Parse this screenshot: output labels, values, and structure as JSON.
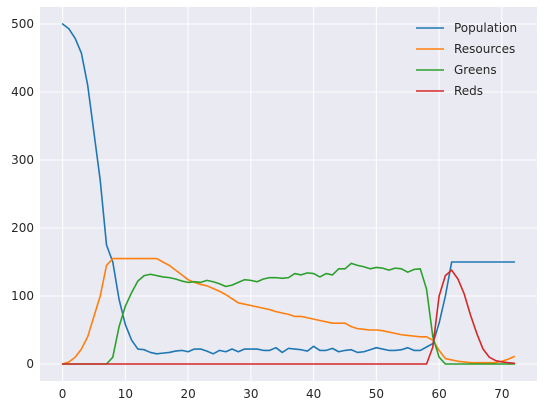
{
  "chart_data": {
    "type": "line",
    "xlim": [
      -3.6,
      75.6
    ],
    "ylim": [
      -25,
      525
    ],
    "x_ticks": [
      0,
      10,
      20,
      30,
      40,
      50,
      60,
      70
    ],
    "y_ticks": [
      0,
      100,
      200,
      300,
      400,
      500
    ],
    "grid": true,
    "background": "#eaeaf2",
    "legend": "top-right",
    "x": [
      0,
      1,
      2,
      3,
      4,
      5,
      6,
      7,
      8,
      9,
      10,
      11,
      12,
      13,
      14,
      15,
      16,
      17,
      18,
      19,
      20,
      21,
      22,
      23,
      24,
      25,
      26,
      27,
      28,
      29,
      30,
      31,
      32,
      33,
      34,
      35,
      36,
      37,
      38,
      39,
      40,
      41,
      42,
      43,
      44,
      45,
      46,
      47,
      48,
      49,
      50,
      51,
      52,
      53,
      54,
      55,
      56,
      57,
      58,
      59,
      60,
      61,
      62,
      63,
      64,
      65,
      66,
      67,
      68,
      69,
      70,
      71,
      72
    ],
    "series": [
      {
        "name": "Population",
        "color": "#1f77b4",
        "values": [
          500,
          493,
          479,
          457,
          410,
          340,
          270,
          175,
          150,
          95,
          58,
          35,
          22,
          21,
          17,
          15,
          16,
          17,
          19,
          20,
          18,
          22,
          22,
          19,
          15,
          20,
          18,
          22,
          18,
          22,
          22,
          22,
          20,
          20,
          24,
          17,
          23,
          22,
          21,
          19,
          26,
          20,
          20,
          23,
          18,
          20,
          21,
          17,
          18,
          21,
          24,
          22,
          20,
          20,
          21,
          24,
          20,
          20,
          25,
          30,
          60,
          100,
          150,
          150,
          150,
          150,
          150,
          150,
          150,
          150,
          150,
          150,
          150
        ]
      },
      {
        "name": "Resources",
        "color": "#ff7f0e",
        "values": [
          0,
          3,
          10,
          22,
          40,
          70,
          100,
          145,
          155,
          155,
          155,
          155,
          155,
          155,
          155,
          155,
          150,
          145,
          138,
          131,
          124,
          120,
          117,
          115,
          111,
          107,
          102,
          96,
          90,
          88,
          86,
          84,
          82,
          80,
          77,
          75,
          73,
          70,
          70,
          68,
          66,
          64,
          62,
          60,
          60,
          60,
          55,
          52,
          51,
          50,
          50,
          49,
          47,
          45,
          43,
          42,
          41,
          40,
          40,
          35,
          20,
          8,
          6,
          4,
          3,
          2,
          2,
          2,
          2,
          2,
          4,
          7,
          11
        ]
      },
      {
        "name": "Greens",
        "color": "#2ca02c",
        "values": [
          0,
          0,
          0,
          0,
          0,
          0,
          0,
          0,
          10,
          55,
          85,
          105,
          122,
          130,
          132,
          130,
          128,
          127,
          125,
          122,
          120,
          121,
          120,
          123,
          121,
          118,
          114,
          116,
          120,
          124,
          123,
          121,
          125,
          127,
          127,
          126,
          127,
          133,
          131,
          134,
          133,
          128,
          133,
          131,
          140,
          140,
          148,
          145,
          143,
          140,
          142,
          141,
          138,
          141,
          140,
          135,
          139,
          140,
          110,
          40,
          10,
          0,
          0,
          0,
          0,
          0,
          0,
          0,
          0,
          0,
          0,
          0,
          0
        ]
      },
      {
        "name": "Reds",
        "color": "#d62728",
        "values": [
          0,
          0,
          0,
          0,
          0,
          0,
          0,
          0,
          0,
          0,
          0,
          0,
          0,
          0,
          0,
          0,
          0,
          0,
          0,
          0,
          0,
          0,
          0,
          0,
          0,
          0,
          0,
          0,
          0,
          0,
          0,
          0,
          0,
          0,
          0,
          0,
          0,
          0,
          0,
          0,
          0,
          0,
          0,
          0,
          0,
          0,
          0,
          0,
          0,
          0,
          0,
          0,
          0,
          0,
          0,
          0,
          0,
          0,
          0,
          25,
          100,
          130,
          138,
          125,
          103,
          72,
          45,
          22,
          10,
          5,
          3,
          2,
          1
        ]
      }
    ]
  }
}
